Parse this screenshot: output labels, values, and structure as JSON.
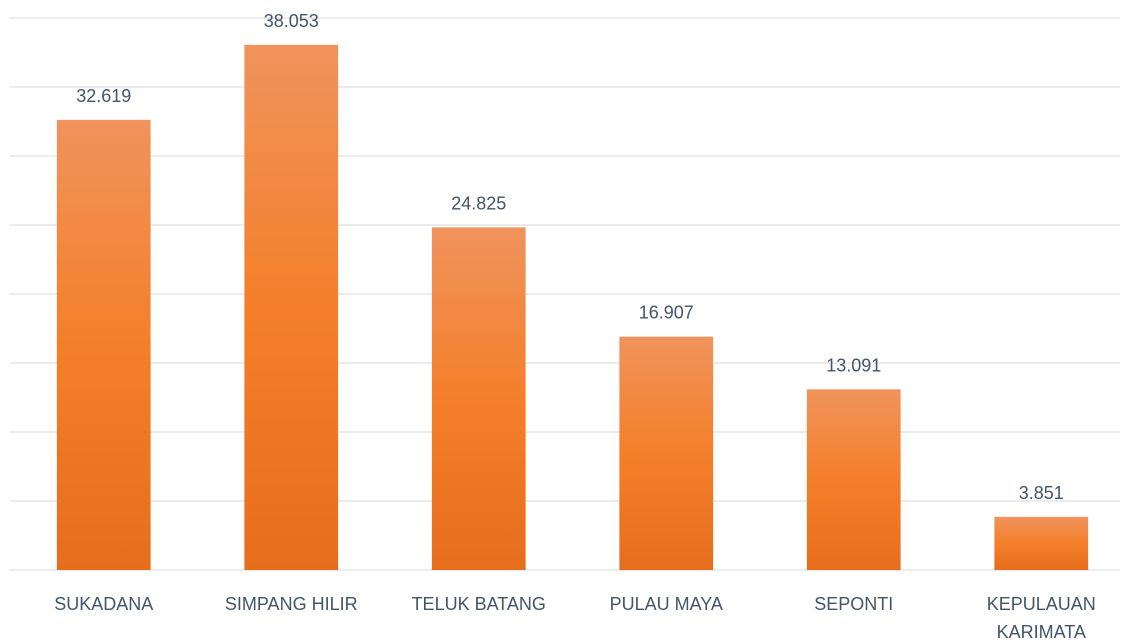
{
  "chart_data": {
    "type": "bar",
    "categories": [
      "SUKADANA",
      "SIMPANG HILIR",
      "TELUK BATANG",
      "PULAU MAYA",
      "SEPONTI",
      "KEPULAUAN KARIMATA"
    ],
    "values": [
      32619,
      38053,
      24825,
      16907,
      13091,
      3851
    ],
    "value_labels": [
      "32.619",
      "38.053",
      "24.825",
      "16.907",
      "13.091",
      "3.851"
    ],
    "color": "#f47f2a",
    "ylim": [
      0,
      40000
    ],
    "yticks": [
      0,
      5000,
      10000,
      15000,
      20000,
      25000,
      30000,
      35000,
      40000
    ],
    "grid": true
  }
}
